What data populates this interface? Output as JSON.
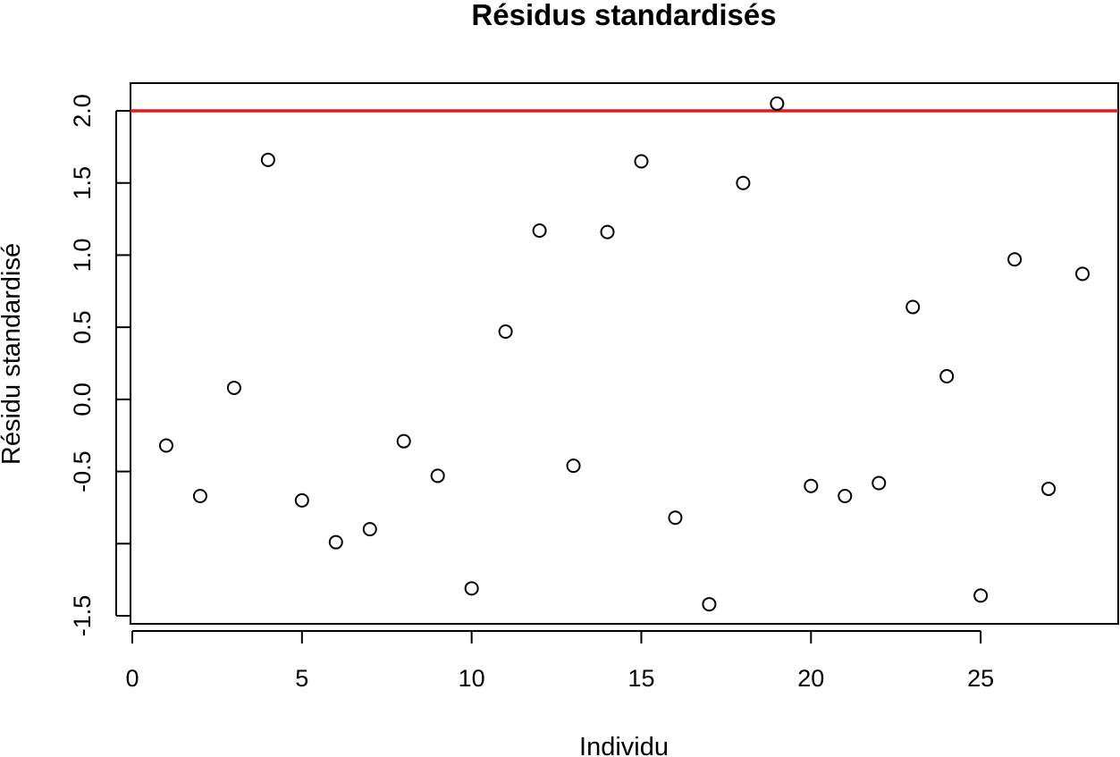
{
  "chart_data": {
    "type": "scatter",
    "title": "Résidus standardisés",
    "xlabel": "Individu",
    "ylabel": "Résidu standardisé",
    "xlim": [
      0,
      29
    ],
    "ylim": [
      -1.55,
      2.2
    ],
    "x_ticks": [
      0,
      5,
      10,
      15,
      20,
      25
    ],
    "x_tick_labels": [
      "0",
      "5",
      "10",
      "15",
      "20",
      "25"
    ],
    "y_ticks": [
      -1.5,
      -1.0,
      -0.5,
      0.0,
      0.5,
      1.0,
      1.5,
      2.0
    ],
    "y_tick_labels": [
      "-1.5",
      "",
      "-0.5",
      "0.0",
      "0.5",
      "1.0",
      "1.5",
      "2.0"
    ],
    "grid": false,
    "reference_line": {
      "y": 2.0,
      "color": "#e41a1c"
    },
    "point_color": "#000000",
    "x": [
      1,
      2,
      3,
      4,
      5,
      6,
      7,
      8,
      9,
      10,
      11,
      12,
      13,
      14,
      15,
      16,
      17,
      18,
      19,
      20,
      21,
      22,
      23,
      24,
      25,
      26,
      27,
      28
    ],
    "y": [
      -0.32,
      -0.67,
      0.08,
      1.66,
      -0.7,
      -0.99,
      -0.9,
      -0.29,
      -0.53,
      -1.31,
      0.47,
      1.17,
      -0.46,
      1.16,
      1.65,
      -0.82,
      -1.42,
      1.5,
      2.05,
      -0.6,
      -0.67,
      -0.58,
      0.64,
      0.16,
      -1.36,
      0.97,
      -0.62,
      0.87
    ]
  }
}
